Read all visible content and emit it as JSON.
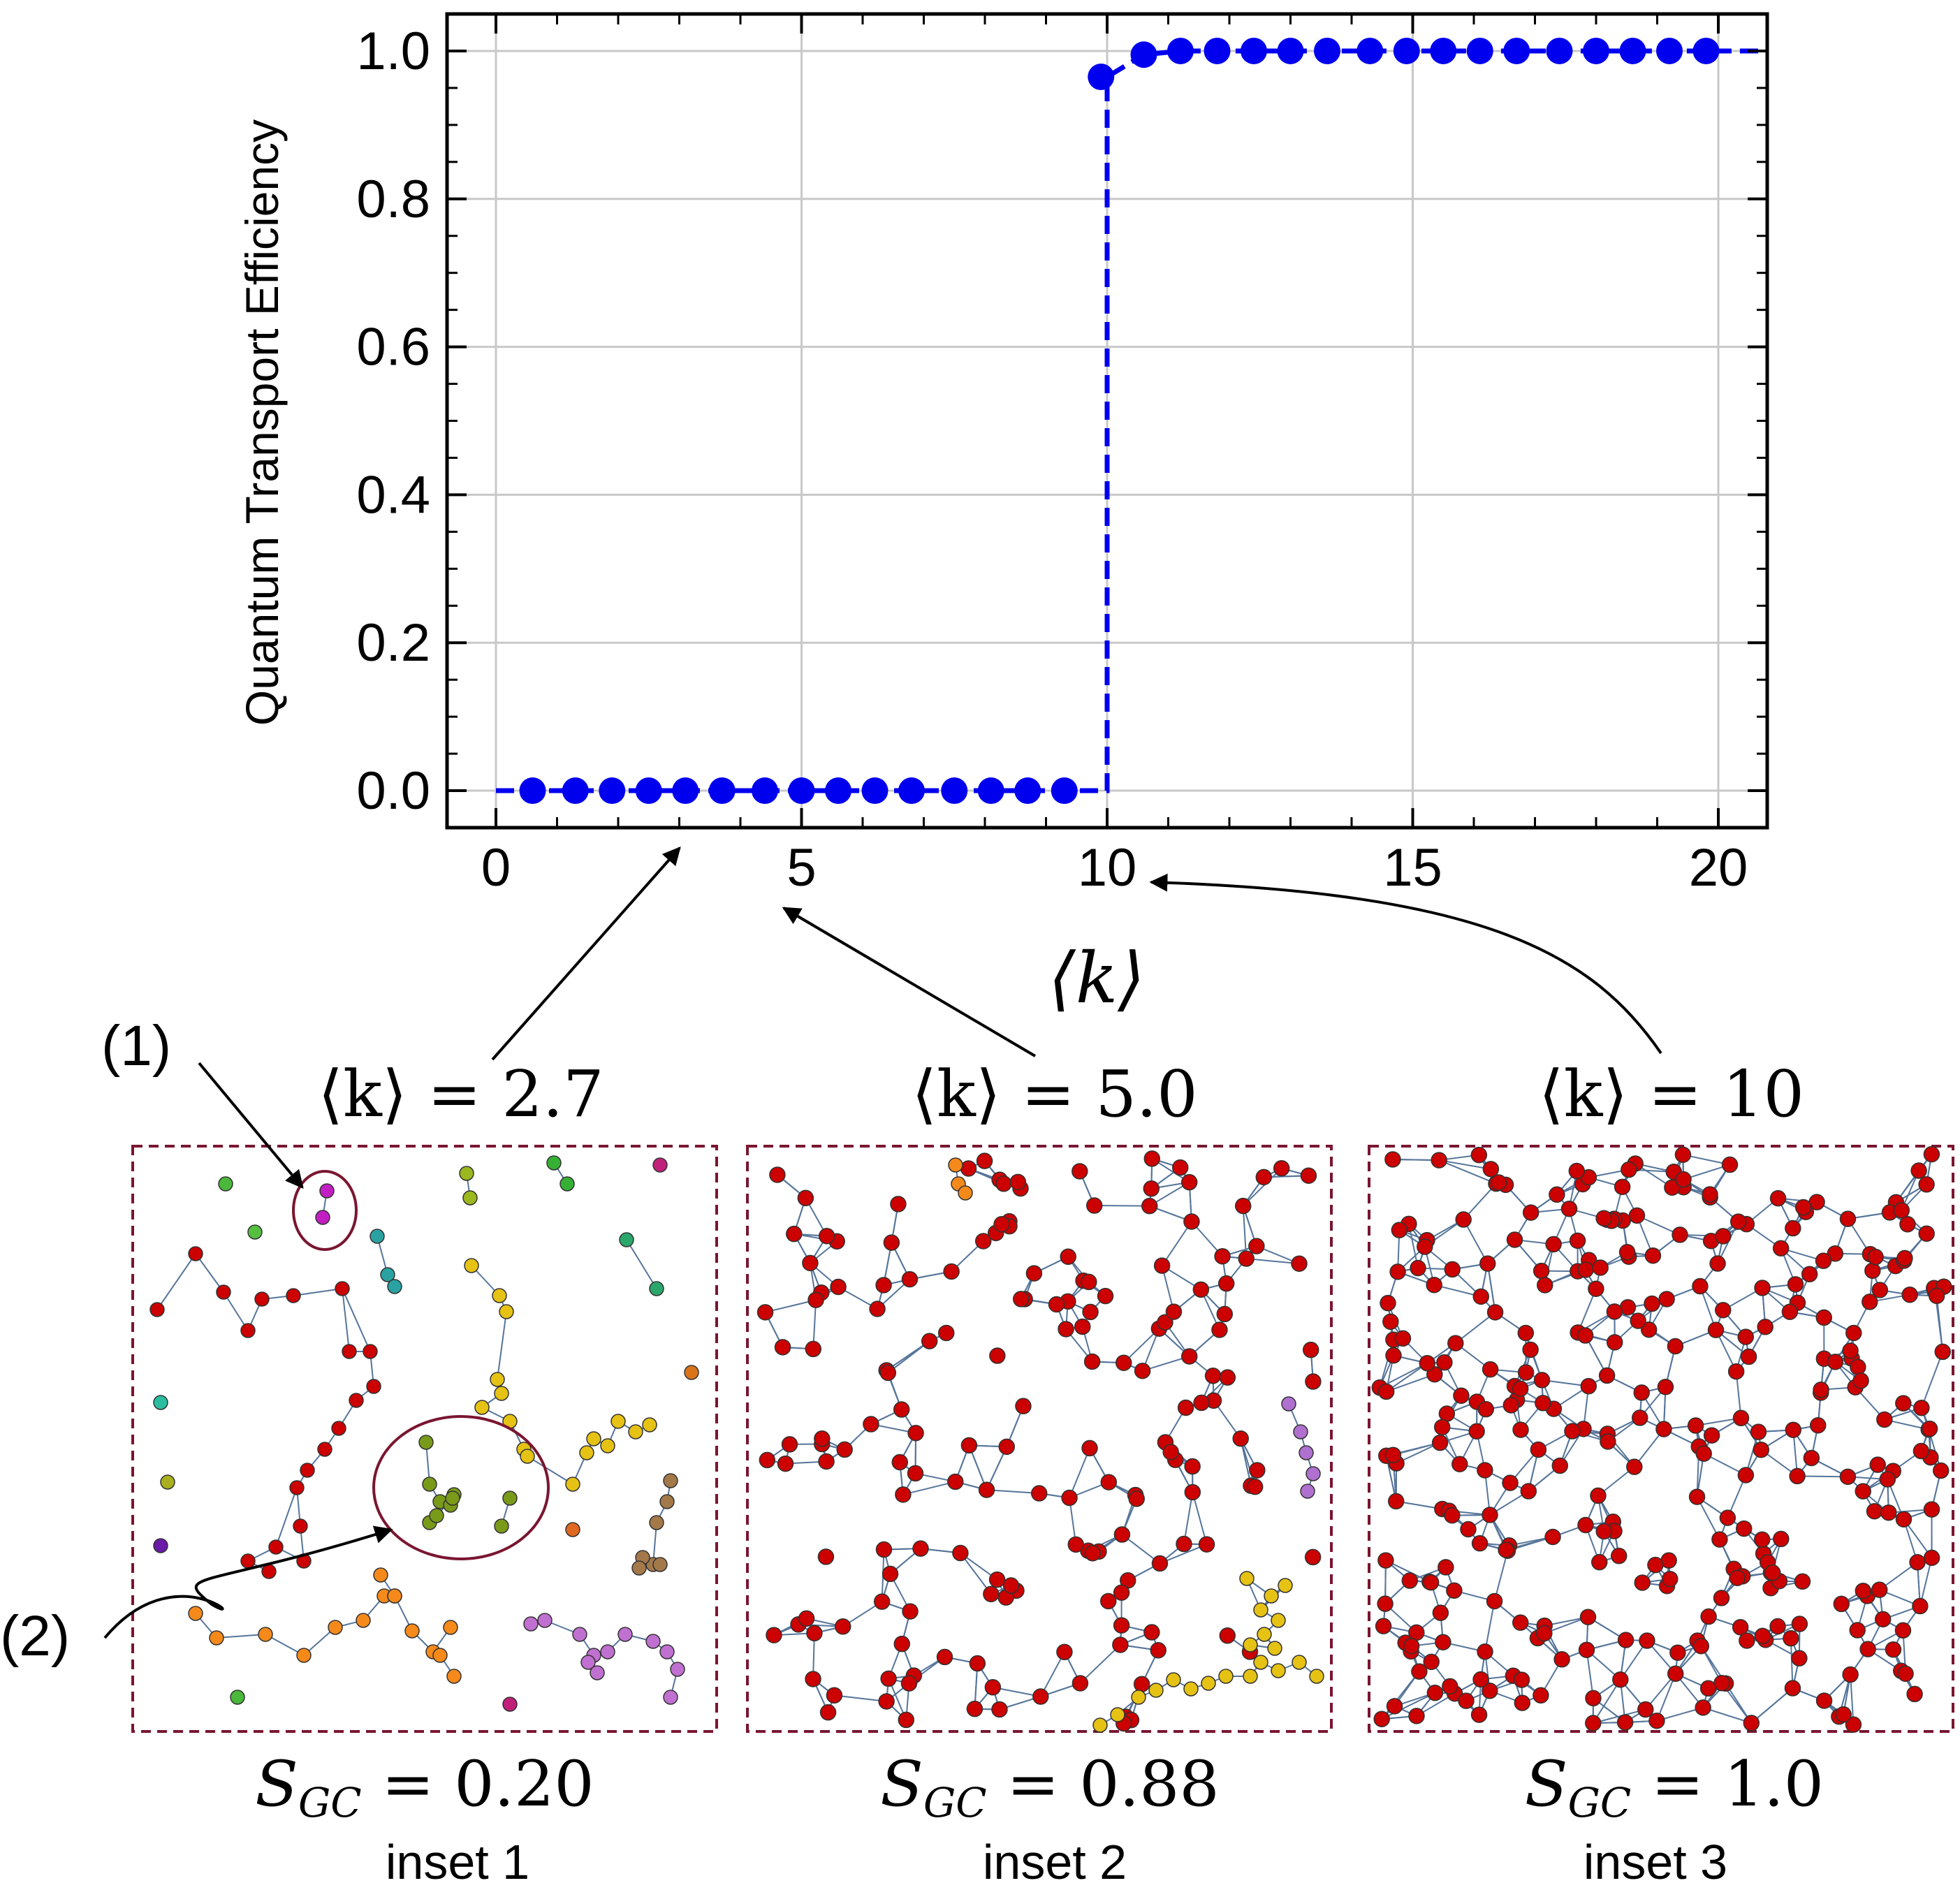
{
  "chart_data": {
    "type": "line",
    "title": "",
    "xlabel": "⟨k⟩",
    "ylabel": "Quantum Transport Efficiency",
    "xlim": [
      -0.8,
      20.8
    ],
    "ylim": [
      -0.05,
      1.05
    ],
    "x_ticks": [
      0,
      5,
      10,
      15,
      20
    ],
    "x_tick_labels": [
      "0",
      "5",
      "10",
      "15",
      "20"
    ],
    "y_ticks": [
      0.0,
      0.2,
      0.4,
      0.6,
      0.8,
      1.0
    ],
    "y_tick_labels": [
      "0.0",
      "0.2",
      "0.4",
      "0.6",
      "0.8",
      "1.0"
    ],
    "grid": true,
    "series": [
      {
        "name": "Quantum Transport Efficiency",
        "color": "#0000ee",
        "line_style": "dashed",
        "marker": "circle",
        "x": [
          0.6,
          1.3,
          1.9,
          2.5,
          3.1,
          3.7,
          4.4,
          5.0,
          5.6,
          6.2,
          6.8,
          7.5,
          8.1,
          8.7,
          9.3,
          9.9,
          10.6,
          11.2,
          11.8,
          12.4,
          13.0,
          13.6,
          14.3,
          14.9,
          15.5,
          16.1,
          16.7,
          17.4,
          18.0,
          18.6,
          19.2,
          19.8
        ],
        "y": [
          0,
          0,
          0,
          0,
          0,
          0,
          0,
          0,
          0,
          0,
          0,
          0,
          0,
          0,
          0,
          0.965,
          0.995,
          1.0,
          1.0,
          1.0,
          1.0,
          1.0,
          1.0,
          1.0,
          1.0,
          1.0,
          1.0,
          1.0,
          1.0,
          1.0,
          1.0,
          1.0
        ]
      }
    ],
    "line_extent": {
      "x_start": 0,
      "x_end": 20.8,
      "step_at": 10
    }
  },
  "annotations": {
    "label1": "(1)",
    "label2": "(2)",
    "colors": {
      "frame": "#7a1630",
      "arrow": "#000000",
      "node_gc": "#cc0000",
      "edge": "#56759a"
    }
  },
  "insets": [
    {
      "title": "⟨k⟩ = 2.7",
      "s_gc": "S",
      "s_sub": "GC",
      "s_val": " = 0.20",
      "caption": "inset 1",
      "arrow_target_k": 3.4
    },
    {
      "title": "⟨k⟩ = 5.0",
      "s_gc": "S",
      "s_sub": "GC",
      "s_val": " = 0.88",
      "caption": "inset 2",
      "arrow_target_k": 5.0
    },
    {
      "title": "⟨k⟩ = 10",
      "s_gc": "S",
      "s_sub": "GC",
      "s_val": " = 1.0",
      "caption": "inset 3",
      "arrow_target_k": 10.0
    }
  ]
}
